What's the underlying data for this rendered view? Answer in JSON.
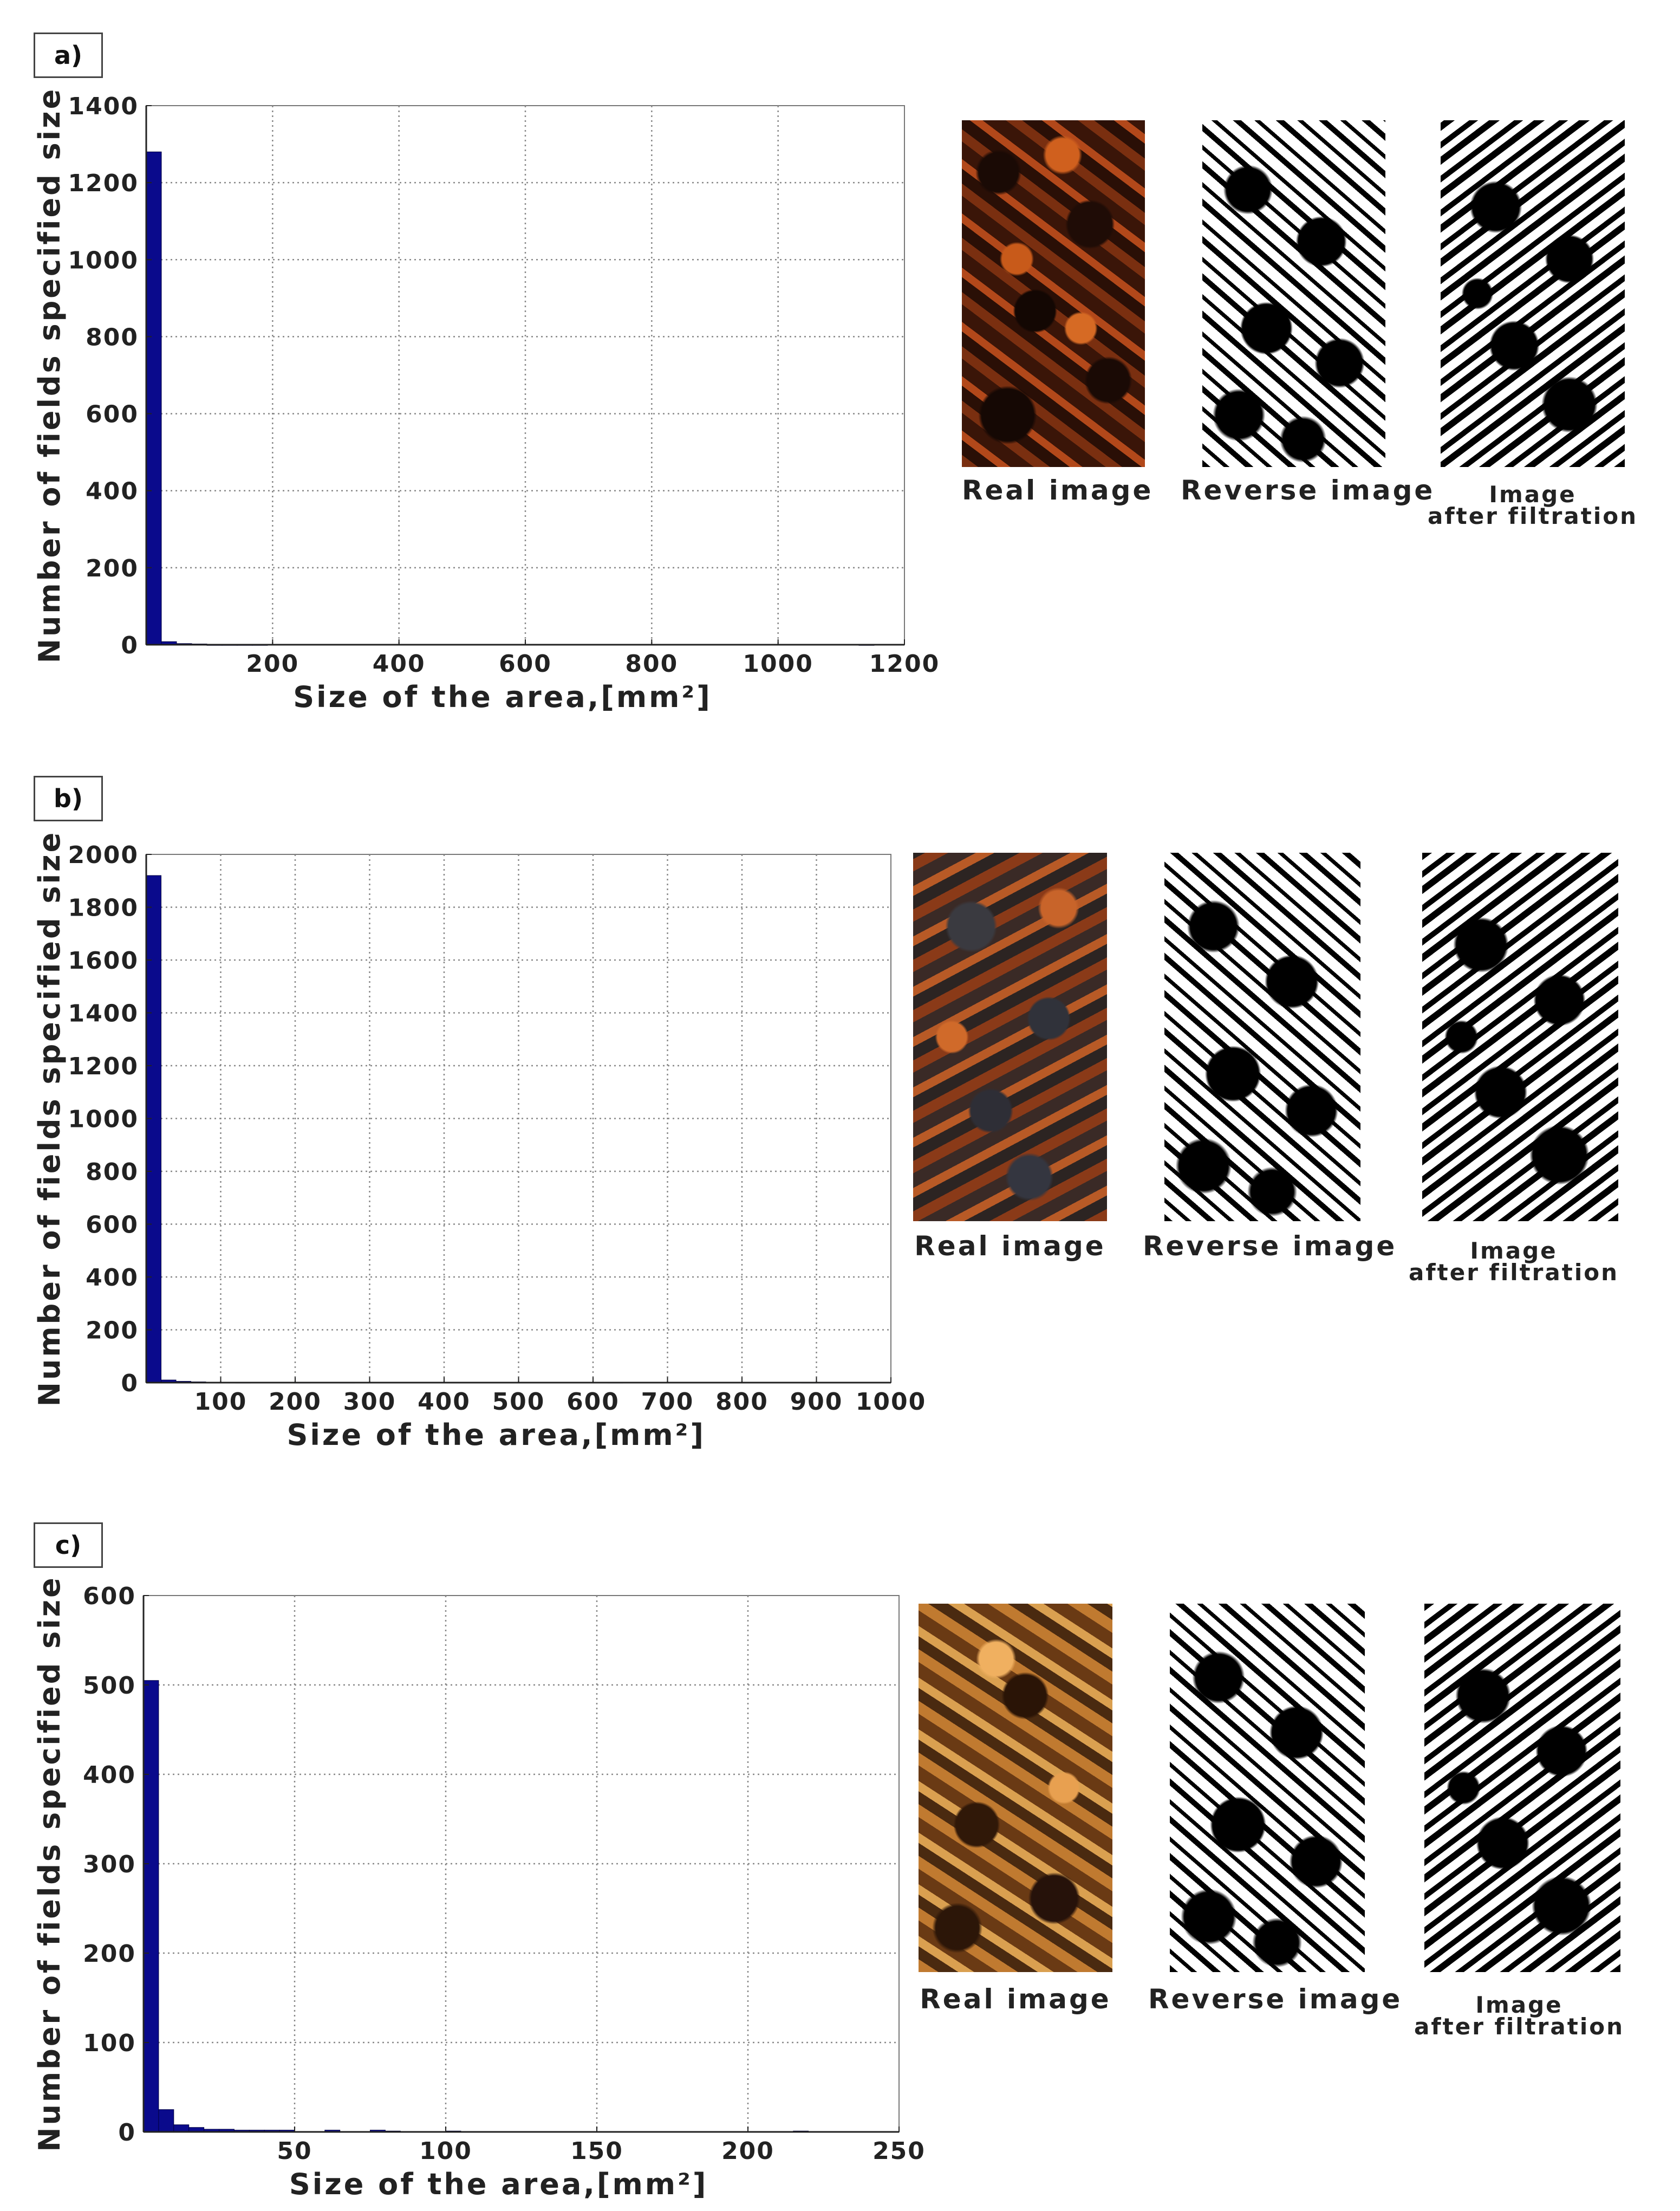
{
  "chart_data": [
    {
      "type": "bar",
      "panel_label": "a)",
      "xlabel": "Size of the area,[mm²]",
      "ylabel": "Number of fields specified size",
      "xlim": [
        0,
        1200
      ],
      "ylim": [
        0,
        1400
      ],
      "xticks": [
        200,
        400,
        600,
        800,
        1000,
        1200
      ],
      "yticks": [
        0,
        200,
        400,
        600,
        800,
        1000,
        1200,
        1400
      ],
      "grid": true,
      "bin_width": 24,
      "x": [
        12,
        36,
        60,
        84,
        108,
        132,
        156,
        180,
        1140
      ],
      "values": [
        1280,
        8,
        3,
        2,
        1,
        1,
        1,
        1,
        1
      ],
      "images": [
        "Real image",
        "Reverse image",
        "Image",
        "after filtration"
      ]
    },
    {
      "type": "bar",
      "panel_label": "b)",
      "xlabel": "Size of the area,[mm²]",
      "ylabel": "Number of fields specified size",
      "xlim": [
        0,
        1000
      ],
      "ylim": [
        0,
        2000
      ],
      "xticks": [
        100,
        200,
        300,
        400,
        500,
        600,
        700,
        800,
        900,
        1000
      ],
      "yticks": [
        0,
        200,
        400,
        600,
        800,
        1000,
        1200,
        1400,
        1600,
        1800,
        2000
      ],
      "grid": true,
      "bin_width": 20,
      "x": [
        10,
        30,
        50,
        70,
        130,
        210,
        270,
        630,
        890
      ],
      "values": [
        1920,
        10,
        5,
        3,
        2,
        2,
        2,
        2,
        2
      ],
      "images": [
        "Real image",
        "Reverse image",
        "Image",
        "after filtration"
      ]
    },
    {
      "type": "bar",
      "panel_label": "c)",
      "xlabel": "Size of the area,[mm²]",
      "ylabel": "Number of fields specified size",
      "xlim": [
        0,
        250
      ],
      "ylim": [
        0,
        600
      ],
      "xticks": [
        50,
        100,
        150,
        200,
        250
      ],
      "yticks": [
        0,
        100,
        200,
        300,
        400,
        500,
        600
      ],
      "grid": true,
      "bin_width": 5,
      "x": [
        2.5,
        7.5,
        12.5,
        17.5,
        22.5,
        27.5,
        32.5,
        37.5,
        42.5,
        47.5,
        62.5,
        77.5,
        82.5,
        102.5,
        217.5
      ],
      "values": [
        505,
        25,
        8,
        5,
        3,
        3,
        2,
        2,
        2,
        2,
        2,
        2,
        1,
        1,
        1
      ],
      "images": [
        "Real image",
        "Reverse image",
        "Image",
        "after filtration"
      ]
    }
  ]
}
